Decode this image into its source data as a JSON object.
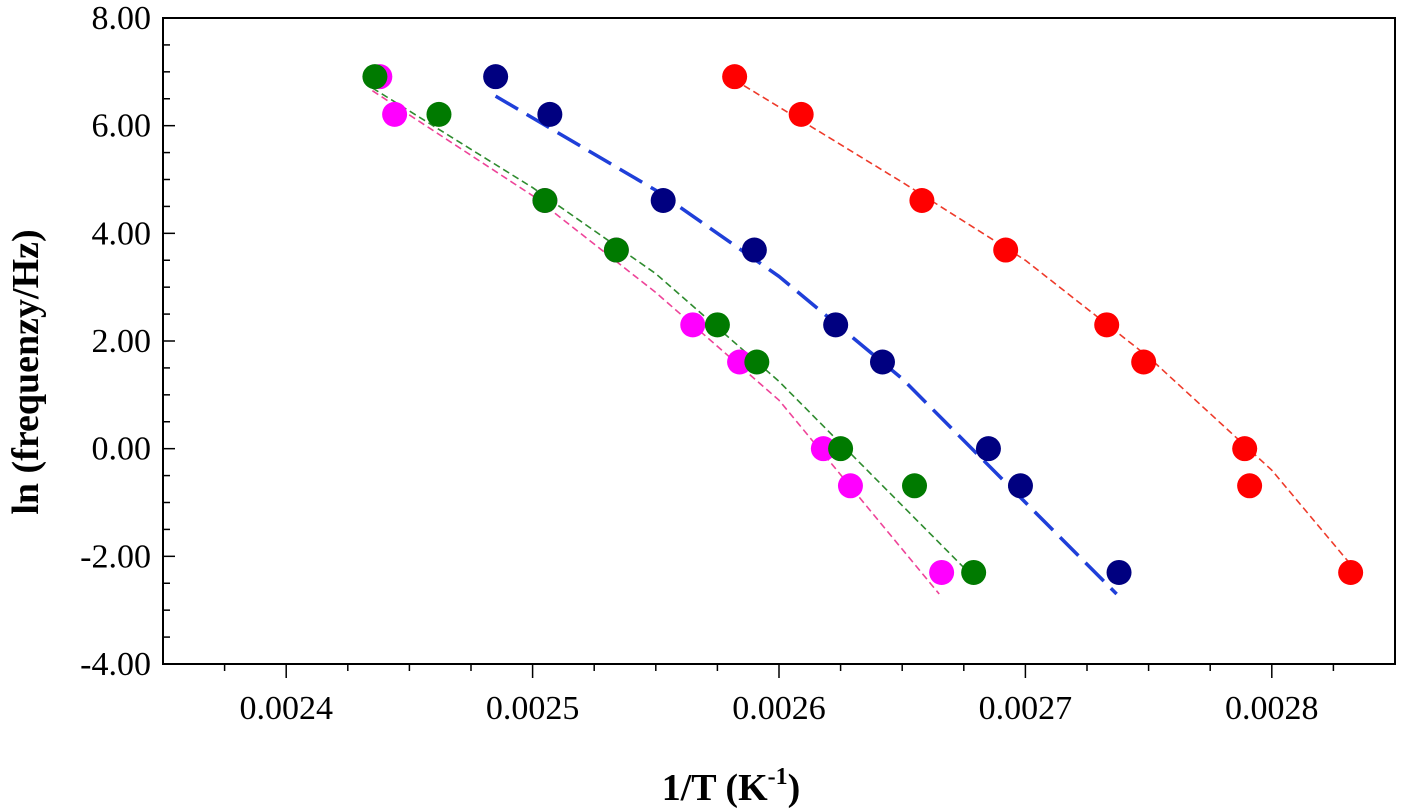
{
  "chart_data": {
    "type": "scatter",
    "title": "",
    "xlabel": "1/T (K",
    "xlabel_sup": "-1",
    "xlabel_end": ")",
    "ylabel": "ln (frequenzy/Hz)",
    "xlim": [
      0.00235,
      0.00285
    ],
    "ylim": [
      -4,
      8
    ],
    "x_ticks": [
      0.0024,
      0.0025,
      0.0026,
      0.0027,
      0.0028
    ],
    "x_tick_labels": [
      "0.0024",
      "0.0025",
      "0.0026",
      "0.0027",
      "0.0028"
    ],
    "y_ticks": [
      -4,
      -2,
      0,
      2,
      4,
      6,
      8
    ],
    "y_tick_labels": [
      "-4.00",
      "-2.00",
      "0.00",
      "2.00",
      "4.00",
      "6.00",
      "8.00"
    ],
    "grid": false,
    "legend": "none",
    "series": [
      {
        "color": "#ff00ff",
        "fit_color": "#ee4499",
        "points": [
          {
            "x": 0.002438,
            "y": 6.91
          },
          {
            "x": 0.002444,
            "y": 6.21
          },
          {
            "x": 0.002505,
            "y": 4.61
          },
          {
            "x": 0.002534,
            "y": 3.69
          },
          {
            "x": 0.002565,
            "y": 2.3
          },
          {
            "x": 0.002584,
            "y": 1.61
          },
          {
            "x": 0.002618,
            "y": 0.0
          },
          {
            "x": 0.002629,
            "y": -0.69
          },
          {
            "x": 0.002666,
            "y": -2.3
          }
        ],
        "fit": [
          {
            "x": 0.002435,
            "y": 6.65
          },
          {
            "x": 0.0025,
            "y": 4.7
          },
          {
            "x": 0.00255,
            "y": 2.9
          },
          {
            "x": 0.0026,
            "y": 0.9
          },
          {
            "x": 0.002665,
            "y": -2.7
          }
        ]
      },
      {
        "color": "#007a00",
        "fit_color": "#2e8b2e",
        "points": [
          {
            "x": 0.002436,
            "y": 6.91
          },
          {
            "x": 0.002462,
            "y": 6.21
          },
          {
            "x": 0.002505,
            "y": 4.61
          },
          {
            "x": 0.002534,
            "y": 3.69
          },
          {
            "x": 0.002575,
            "y": 2.3
          },
          {
            "x": 0.002591,
            "y": 1.61
          },
          {
            "x": 0.002625,
            "y": 0.0
          },
          {
            "x": 0.002655,
            "y": -0.69
          },
          {
            "x": 0.002679,
            "y": -2.3
          }
        ],
        "fit": [
          {
            "x": 0.002435,
            "y": 6.7
          },
          {
            "x": 0.0025,
            "y": 4.85
          },
          {
            "x": 0.00255,
            "y": 3.25
          },
          {
            "x": 0.0026,
            "y": 1.25
          },
          {
            "x": 0.002677,
            "y": -2.3
          }
        ]
      },
      {
        "color": "#000080",
        "fit_color": "#1f3fd9",
        "points": [
          {
            "x": 0.002485,
            "y": 6.91
          },
          {
            "x": 0.002507,
            "y": 6.21
          },
          {
            "x": 0.002553,
            "y": 4.61
          },
          {
            "x": 0.00259,
            "y": 3.69
          },
          {
            "x": 0.002623,
            "y": 2.3
          },
          {
            "x": 0.002642,
            "y": 1.61
          },
          {
            "x": 0.002685,
            "y": 0.0
          },
          {
            "x": 0.002698,
            "y": -0.69
          },
          {
            "x": 0.002738,
            "y": -2.3
          }
        ],
        "fit": [
          {
            "x": 0.002485,
            "y": 6.55
          },
          {
            "x": 0.00255,
            "y": 4.8
          },
          {
            "x": 0.0026,
            "y": 3.2
          },
          {
            "x": 0.00265,
            "y": 1.3
          },
          {
            "x": 0.002737,
            "y": -2.7
          }
        ]
      },
      {
        "color": "#ff0000",
        "fit_color": "#ee3a2a",
        "points": [
          {
            "x": 0.002582,
            "y": 6.91
          },
          {
            "x": 0.002609,
            "y": 6.21
          },
          {
            "x": 0.002658,
            "y": 4.61
          },
          {
            "x": 0.002692,
            "y": 3.69
          },
          {
            "x": 0.002733,
            "y": 2.3
          },
          {
            "x": 0.002748,
            "y": 1.61
          },
          {
            "x": 0.002789,
            "y": 0.0
          },
          {
            "x": 0.002791,
            "y": -0.69
          },
          {
            "x": 0.002832,
            "y": -2.3
          }
        ],
        "fit": [
          {
            "x": 0.002582,
            "y": 6.85
          },
          {
            "x": 0.00265,
            "y": 4.95
          },
          {
            "x": 0.0027,
            "y": 3.5
          },
          {
            "x": 0.00275,
            "y": 1.7
          },
          {
            "x": 0.0028,
            "y": -0.4
          },
          {
            "x": 0.002832,
            "y": -2.15
          }
        ]
      }
    ]
  }
}
